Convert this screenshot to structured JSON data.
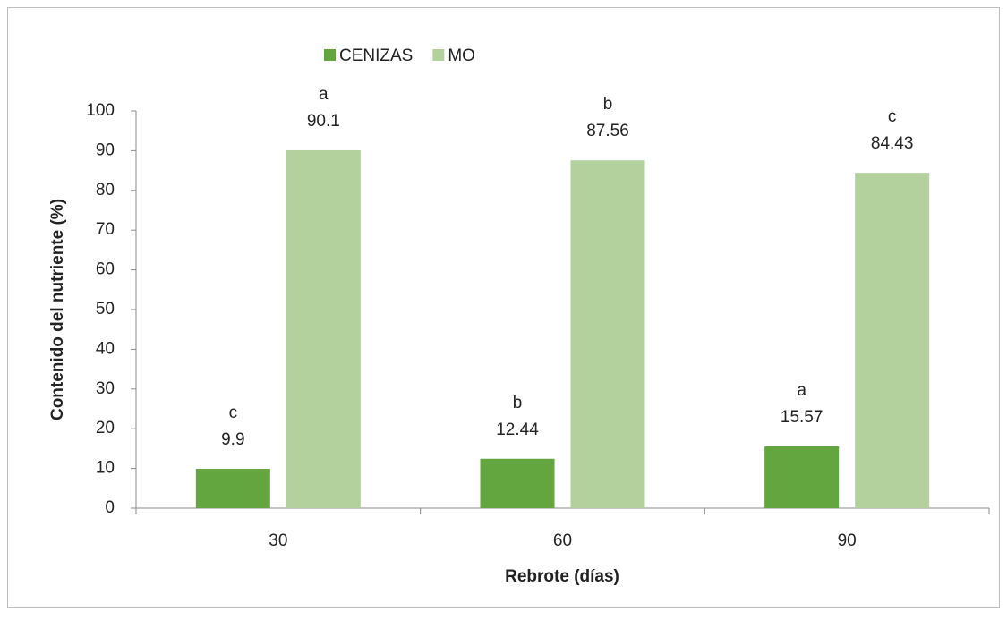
{
  "chart_data": {
    "type": "bar",
    "x_label": "Rebrote (días)",
    "y_label": "Contenido  del nutriente (%)",
    "categories": [
      "30",
      "60",
      "90"
    ],
    "series": [
      {
        "name": "CENIZAS",
        "color": "#63a53f",
        "values": [
          9.9,
          12.44,
          15.57
        ],
        "annotations": [
          "c",
          "b",
          "a"
        ]
      },
      {
        "name": "MO",
        "color": "#b2d19c",
        "values": [
          90.1,
          87.56,
          84.43
        ],
        "annotations": [
          "a",
          "b",
          "c"
        ]
      }
    ],
    "ylim": [
      0,
      100
    ],
    "yticks": [
      0,
      10,
      20,
      30,
      40,
      50,
      60,
      70,
      80,
      90,
      100
    ],
    "legend": "top"
  }
}
